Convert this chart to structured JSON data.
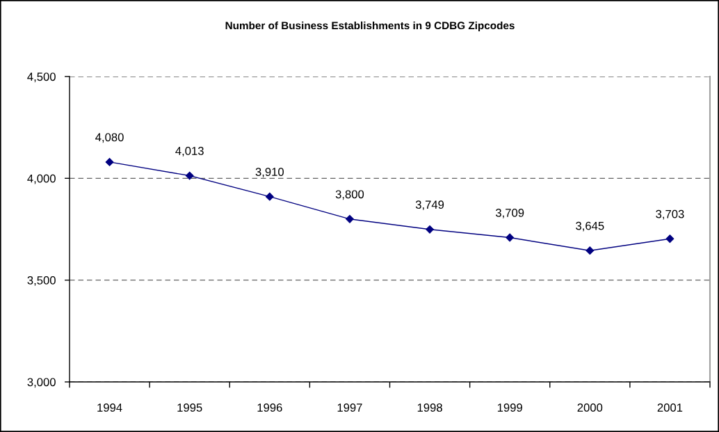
{
  "chart_data": {
    "type": "line",
    "title": "Number of Business Establishments in 9 CDBG Zipcodes",
    "categories": [
      "1994",
      "1995",
      "1996",
      "1997",
      "1998",
      "1999",
      "2000",
      "2001"
    ],
    "series": [
      {
        "color": "#000080",
        "values": [
          4080,
          4013,
          3910,
          3800,
          3749,
          3709,
          3645,
          3703
        ],
        "value_labels": [
          "4,080",
          "4,013",
          "3,910",
          "3,800",
          "3,749",
          "3,709",
          "3,645",
          "3,703"
        ]
      }
    ],
    "ylim": [
      3000,
      4500
    ],
    "yticks": [
      {
        "value": 3000,
        "label": "3,000"
      },
      {
        "value": 3500,
        "label": "3,500"
      },
      {
        "value": 4000,
        "label": "4,000"
      },
      {
        "value": 4500,
        "label": "4,500"
      }
    ],
    "grid": "y",
    "marker": "diamond",
    "line_style": "solid"
  }
}
